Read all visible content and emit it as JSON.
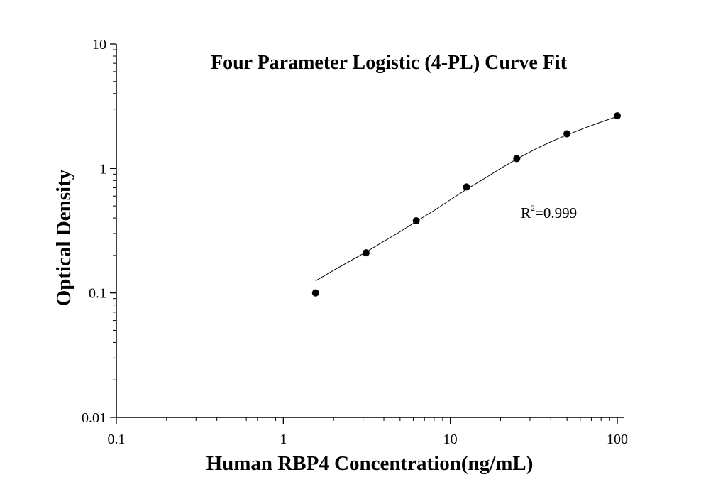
{
  "chart_data": {
    "type": "scatter",
    "title": "Four Parameter Logistic (4-PL) Curve Fit",
    "xlabel": "Human RBP4 Concentration(ng/mL)",
    "ylabel": "Optical Density",
    "x_scale": "log",
    "y_scale": "log",
    "xlim": [
      0.1,
      100
    ],
    "ylim": [
      0.01,
      10
    ],
    "x_ticks": [
      0.1,
      1,
      10,
      100
    ],
    "x_tick_labels": [
      "0.1",
      "1",
      "10",
      "100"
    ],
    "y_ticks": [
      0.01,
      0.1,
      1,
      10
    ],
    "y_tick_labels": [
      "0.01",
      "0.1",
      "1",
      "10"
    ],
    "grid": false,
    "points": {
      "x": [
        1.56,
        3.13,
        6.25,
        12.5,
        25,
        50,
        100
      ],
      "y": [
        0.1,
        0.21,
        0.38,
        0.71,
        1.2,
        1.9,
        2.65
      ]
    },
    "fit_curve": {
      "model": "4-PL",
      "x": [
        1.56,
        2.0,
        2.5,
        3.13,
        4.0,
        5.0,
        6.25,
        8.0,
        10.0,
        12.5,
        16.0,
        20.0,
        25.0,
        32.0,
        40.0,
        50.0,
        63.0,
        80.0,
        100.0
      ],
      "y": [
        0.125,
        0.152,
        0.18,
        0.213,
        0.26,
        0.31,
        0.375,
        0.46,
        0.56,
        0.68,
        0.83,
        1.0,
        1.19,
        1.42,
        1.64,
        1.86,
        2.1,
        2.36,
        2.62
      ]
    },
    "annotation": {
      "base": "R",
      "superscript": "2",
      "text": "=0.999"
    },
    "colors": {
      "points": "#000000",
      "curve": "#000000",
      "axes": "#000000",
      "background": "#ffffff"
    }
  }
}
